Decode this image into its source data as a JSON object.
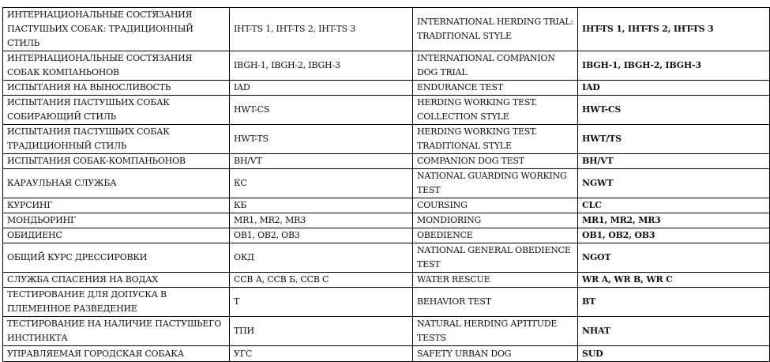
{
  "rows": [
    {
      "ru": "ИНТЕРНАЦИОНАЛЬНЫЕ СОСТЯЗАНИЯ ПАСТУШЬИХ СОБАК: ТРАДИЦИОННЫЙ СТИЛЬ",
      "ru_code": "IHT-TS 1, IHT-TS 2, IHT-TS 3",
      "en": "INTERNATIONAL HERDING TRIAL: TRADITIONAL STYLE",
      "en_code": "IHT-TS 1, IHT-TS 2, IHT-TS 3"
    },
    {
      "ru": "ИНТЕРНАЦИОНАЛЬНЫЕ СОСТЯЗАНИЯ СОБАК КОМПАНЬОНОВ",
      "ru_code": "IBGH-1, IBGH-2, IBGH-3",
      "en": "INTERNATIONAL COMPANION DOG TRIAL",
      "en_code": "IBGH-1, IBGH-2, IBGH-3"
    },
    {
      "ru": "ИСПЫТАНИЯ НА ВЫНОСЛИВОСТЬ",
      "ru_code": "IAD",
      "en": "ENDURANCE TEST",
      "en_code": "IAD"
    },
    {
      "ru": "ИСПЫТАНИЯ ПАСТУШЬИХ СОБАК СОБИРАЮЩИЙ СТИЛЬ",
      "ru_code": "HWT-CS",
      "en": "HERDING WORKING TEST. COLLECTION STYLE",
      "en_code": "HWT-CS"
    },
    {
      "ru": "ИСПЫТАНИЯ ПАСТУШЬИХ СОБАК ТРАДИЦИОННЫЙ СТИЛЬ",
      "ru_code": "HWT-TS",
      "en": "HERDING WORKING TEST. TRADITIONAL STYLE",
      "en_code": "HWT/TS"
    },
    {
      "ru": "ИСПЫТАНИЯ СОБАК-КОМПАНЬОНОВ",
      "ru_code": "BH/VT",
      "en": "COMPANION DOG TEST",
      "en_code": "BH/VT"
    },
    {
      "ru": "КАРАУЛЬНАЯ СЛУЖБА",
      "ru_code": "КС",
      "en": "NATIONAL GUARDING WORKING TEST",
      "en_code": "NGWT"
    },
    {
      "ru": "КУРСИНГ",
      "ru_code": "КБ",
      "en": "COURSING",
      "en_code": "CLC"
    },
    {
      "ru": "МОНДЬОРИНГ",
      "ru_code": "MR1, MR2, MR3",
      "en": "MONDIORING",
      "en_code": "MR1, MR2, MR3"
    },
    {
      "ru": "ОБИДИЕНС",
      "ru_code": "OB1, OB2, OB3",
      "en": "OBEDIENCE",
      "en_code": "OB1, OB2, OB3"
    },
    {
      "ru": "ОБЩИЙ КУРС ДРЕССИРОВКИ",
      "ru_code": "ОКД",
      "en": "NATIONAL GENERAL OBEDIENCE TEST",
      "en_code": "NGOT"
    },
    {
      "ru": "СЛУЖБА СПАСЕНИЯ НА ВОДАХ",
      "ru_code": "ССВ А, ССВ Б, ССВ С",
      "en": "WATER RESCUE",
      "en_code": "WR A, WR B, WR C"
    },
    {
      "ru": "ТЕСТИРОВАНИЕ ДЛЯ ДОПУСКА В ПЛЕМЕННОЕ РАЗВЕДЕНИЕ",
      "ru_code": "Т",
      "en": "BEHAVIOR TEST",
      "en_code": "BT"
    },
    {
      "ru": "ТЕСТИРОВАНИЕ НА НАЛИЧИЕ ПАСТУШЬЕГО ИНСТИНКТА",
      "ru_code": "ТПИ",
      "en": "NATURAL HERDING APTITUDE TESTS",
      "en_code": "NHAT"
    },
    {
      "ru": "УПРАВЛЯЕМАЯ ГОРОДСКАЯ СОБАКА",
      "ru_code": "УГС",
      "en": "SAFETY URBAN DOG",
      "en_code": "SUD"
    }
  ]
}
